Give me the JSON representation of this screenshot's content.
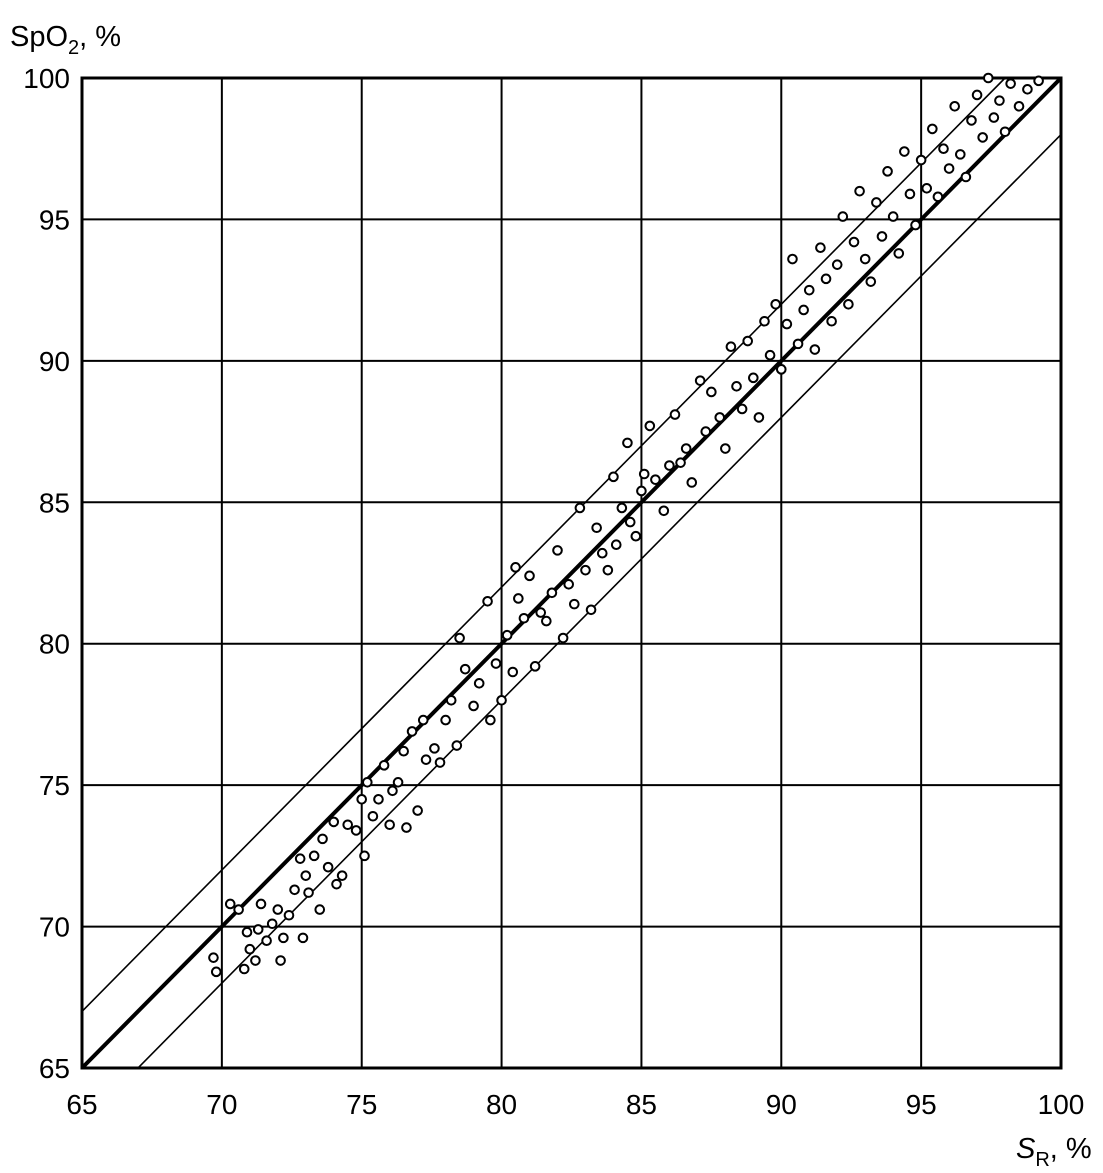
{
  "chart_data": {
    "type": "scatter",
    "title": "",
    "ylabel": {
      "main": "SpO",
      "sub": "2",
      "suffix": ", %"
    },
    "xlabel": {
      "main": "S",
      "sub": "R",
      "suffix": ", %"
    },
    "xlim": [
      65,
      100
    ],
    "ylim": [
      65,
      100
    ],
    "x_ticks": [
      65,
      70,
      75,
      80,
      85,
      90,
      95,
      100
    ],
    "y_ticks": [
      65,
      70,
      75,
      80,
      85,
      90,
      95,
      100
    ],
    "grid": true,
    "lines": [
      {
        "name": "",
        "x": [
          65,
          100
        ],
        "y": [
          65,
          100
        ],
        "style": "bold"
      },
      {
        "name": "",
        "x": [
          65,
          98
        ],
        "y": [
          67,
          100
        ],
        "style": "thin"
      },
      {
        "name": "",
        "x": [
          67,
          100
        ],
        "y": [
          65,
          98
        ],
        "style": "thin"
      }
    ],
    "points": [
      [
        69.7,
        68.9
      ],
      [
        69.8,
        68.4
      ],
      [
        70.3,
        70.8
      ],
      [
        70.6,
        70.6
      ],
      [
        70.8,
        68.5
      ],
      [
        70.9,
        69.8
      ],
      [
        71.0,
        69.2
      ],
      [
        71.2,
        68.8
      ],
      [
        71.3,
        69.9
      ],
      [
        71.4,
        70.8
      ],
      [
        71.6,
        69.5
      ],
      [
        71.8,
        70.1
      ],
      [
        72.0,
        70.6
      ],
      [
        72.1,
        68.8
      ],
      [
        72.2,
        69.6
      ],
      [
        72.4,
        70.4
      ],
      [
        72.6,
        71.3
      ],
      [
        72.8,
        72.4
      ],
      [
        72.9,
        69.6
      ],
      [
        73.0,
        71.8
      ],
      [
        73.1,
        71.2
      ],
      [
        73.3,
        72.5
      ],
      [
        73.5,
        70.6
      ],
      [
        73.6,
        73.1
      ],
      [
        73.8,
        72.1
      ],
      [
        74.0,
        73.7
      ],
      [
        74.1,
        71.5
      ],
      [
        74.3,
        71.8
      ],
      [
        74.5,
        73.6
      ],
      [
        74.8,
        73.4
      ],
      [
        75.0,
        74.5
      ],
      [
        75.1,
        72.5
      ],
      [
        75.2,
        75.1
      ],
      [
        75.4,
        73.9
      ],
      [
        75.6,
        74.5
      ],
      [
        75.8,
        75.7
      ],
      [
        76.0,
        73.6
      ],
      [
        76.1,
        74.8
      ],
      [
        76.3,
        75.1
      ],
      [
        76.5,
        76.2
      ],
      [
        76.6,
        73.5
      ],
      [
        76.8,
        76.9
      ],
      [
        77.0,
        74.1
      ],
      [
        77.2,
        77.3
      ],
      [
        77.3,
        75.9
      ],
      [
        77.6,
        76.3
      ],
      [
        77.8,
        75.8
      ],
      [
        78.0,
        77.3
      ],
      [
        78.2,
        78.0
      ],
      [
        78.4,
        76.4
      ],
      [
        78.5,
        80.2
      ],
      [
        78.7,
        79.1
      ],
      [
        79.0,
        77.8
      ],
      [
        79.2,
        78.6
      ],
      [
        79.5,
        81.5
      ],
      [
        79.6,
        77.3
      ],
      [
        79.8,
        79.3
      ],
      [
        80.0,
        78.0
      ],
      [
        80.2,
        80.3
      ],
      [
        80.4,
        79.0
      ],
      [
        80.5,
        82.7
      ],
      [
        80.6,
        81.6
      ],
      [
        80.8,
        80.9
      ],
      [
        81.0,
        82.4
      ],
      [
        81.2,
        79.2
      ],
      [
        81.4,
        81.1
      ],
      [
        81.6,
        80.8
      ],
      [
        81.8,
        81.8
      ],
      [
        82.0,
        83.3
      ],
      [
        82.2,
        80.2
      ],
      [
        82.4,
        82.1
      ],
      [
        82.6,
        81.4
      ],
      [
        82.8,
        84.8
      ],
      [
        83.0,
        82.6
      ],
      [
        83.2,
        81.2
      ],
      [
        83.4,
        84.1
      ],
      [
        83.6,
        83.2
      ],
      [
        83.8,
        82.6
      ],
      [
        84.0,
        85.9
      ],
      [
        84.1,
        83.5
      ],
      [
        84.3,
        84.8
      ],
      [
        84.5,
        87.1
      ],
      [
        84.6,
        84.3
      ],
      [
        84.8,
        83.8
      ],
      [
        85.0,
        85.4
      ],
      [
        85.1,
        86.0
      ],
      [
        85.3,
        87.7
      ],
      [
        85.5,
        85.8
      ],
      [
        85.8,
        84.7
      ],
      [
        86.0,
        86.3
      ],
      [
        86.2,
        88.1
      ],
      [
        86.4,
        86.4
      ],
      [
        86.6,
        86.9
      ],
      [
        86.8,
        85.7
      ],
      [
        87.1,
        89.3
      ],
      [
        87.3,
        87.5
      ],
      [
        87.5,
        88.9
      ],
      [
        87.8,
        88.0
      ],
      [
        88.0,
        86.9
      ],
      [
        88.2,
        90.5
      ],
      [
        88.4,
        89.1
      ],
      [
        88.6,
        88.3
      ],
      [
        88.8,
        90.7
      ],
      [
        89.0,
        89.4
      ],
      [
        89.2,
        88.0
      ],
      [
        89.4,
        91.4
      ],
      [
        89.6,
        90.2
      ],
      [
        89.8,
        92.0
      ],
      [
        90.0,
        89.7
      ],
      [
        90.2,
        91.3
      ],
      [
        90.4,
        93.6
      ],
      [
        90.6,
        90.6
      ],
      [
        90.8,
        91.8
      ],
      [
        91.0,
        92.5
      ],
      [
        91.2,
        90.4
      ],
      [
        91.4,
        94.0
      ],
      [
        91.6,
        92.9
      ],
      [
        91.8,
        91.4
      ],
      [
        92.0,
        93.4
      ],
      [
        92.2,
        95.1
      ],
      [
        92.4,
        92.0
      ],
      [
        92.6,
        94.2
      ],
      [
        92.8,
        96.0
      ],
      [
        93.0,
        93.6
      ],
      [
        93.2,
        92.8
      ],
      [
        93.4,
        95.6
      ],
      [
        93.6,
        94.4
      ],
      [
        93.8,
        96.7
      ],
      [
        94.0,
        95.1
      ],
      [
        94.2,
        93.8
      ],
      [
        94.4,
        97.4
      ],
      [
        94.6,
        95.9
      ],
      [
        94.8,
        94.8
      ],
      [
        95.0,
        97.1
      ],
      [
        95.2,
        96.1
      ],
      [
        95.4,
        98.2
      ],
      [
        95.6,
        95.8
      ],
      [
        95.8,
        97.5
      ],
      [
        96.0,
        96.8
      ],
      [
        96.2,
        99.0
      ],
      [
        96.4,
        97.3
      ],
      [
        96.6,
        96.5
      ],
      [
        96.8,
        98.5
      ],
      [
        97.0,
        99.4
      ],
      [
        97.2,
        97.9
      ],
      [
        97.4,
        100.0
      ],
      [
        97.6,
        98.6
      ],
      [
        97.8,
        99.2
      ],
      [
        98.0,
        98.1
      ],
      [
        98.2,
        99.8
      ],
      [
        98.5,
        99.0
      ],
      [
        98.8,
        99.6
      ],
      [
        99.2,
        99.9
      ]
    ]
  }
}
